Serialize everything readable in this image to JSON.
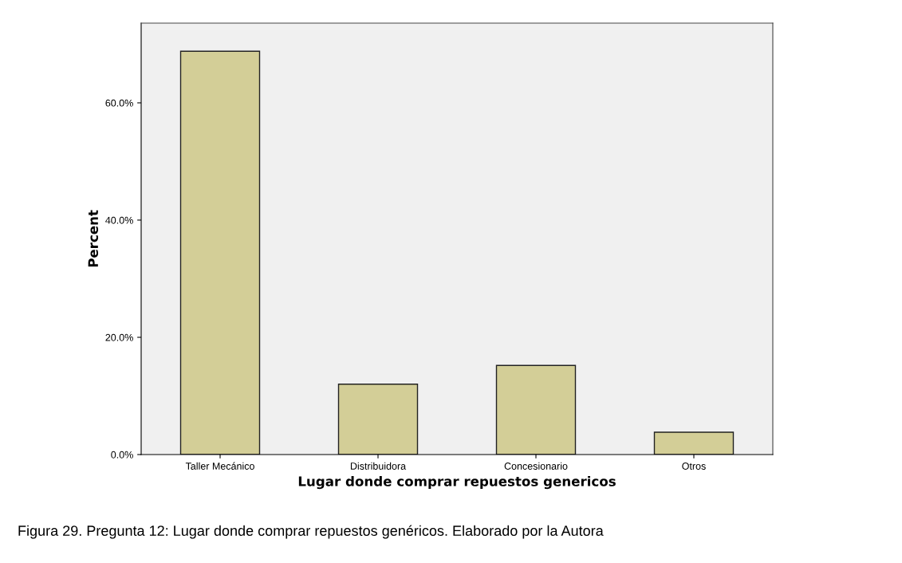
{
  "chart_data": {
    "type": "bar",
    "xlabel": "Lugar donde comprar repuestos genericos",
    "ylabel": "Percent",
    "categories": [
      "Taller Mecánico",
      "Distribuidora",
      "Concesionario",
      "Otros"
    ],
    "values": [
      68.8,
      12.0,
      15.2,
      3.8
    ],
    "color": "#d3ce97",
    "ylim": [
      0,
      73.6
    ],
    "yticks": [
      {
        "value": 0,
        "label": "0.0%"
      },
      {
        "value": 20,
        "label": "20.0%"
      },
      {
        "value": 40,
        "label": "40.0%"
      },
      {
        "value": 60,
        "label": "60.0%"
      }
    ],
    "grid": false,
    "annotations": [
      "Figura 29. Pregunta 12: Lugar donde comprar repuestos genéricos. Elaborado por la Autora"
    ]
  }
}
